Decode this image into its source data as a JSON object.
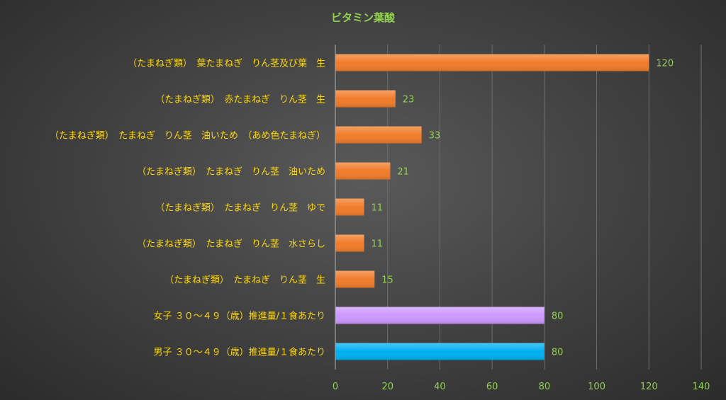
{
  "chart_data": {
    "type": "bar",
    "orientation": "horizontal",
    "title": "ビタミン葉酸",
    "categories": [
      "（たまねぎ類）　葉たまねぎ　りん茎及び葉　生",
      "（たまねぎ類）　赤たまねぎ　りん茎　生",
      "（たまねぎ類）　たまねぎ　りん茎　油いため　（あめ色たまねぎ）",
      "（たまねぎ類）　たまねぎ　りん茎　油いため",
      "（たまねぎ類）　たまねぎ　りん茎　ゆで",
      "（たまねぎ類）　たまねぎ　りん茎　水さらし",
      "（たまねぎ類）　たまねぎ　りん茎　生",
      "女子 ３０～４９（歳）推進量/１食あたり",
      "男子 ３０～４９（歳）推進量/１食あたり"
    ],
    "values": [
      120,
      23,
      33,
      21,
      11,
      11,
      15,
      80,
      80
    ],
    "bar_colors": [
      "#f07c2a",
      "#f07c2a",
      "#f07c2a",
      "#f07c2a",
      "#f07c2a",
      "#f07c2a",
      "#f07c2a",
      "#cc99ff",
      "#00b0f0"
    ],
    "xlim": [
      0,
      140
    ],
    "xticks": [
      0,
      20,
      40,
      60,
      80,
      100,
      120,
      140
    ],
    "grid": true,
    "legend": "none"
  },
  "colors": {
    "title": "#92d050",
    "category_labels": "#ffd700",
    "value_labels": "#92d050",
    "tick_labels": "#92d050",
    "gridlines": "#6e6e6e",
    "axis_line": "#a0a0a0"
  }
}
